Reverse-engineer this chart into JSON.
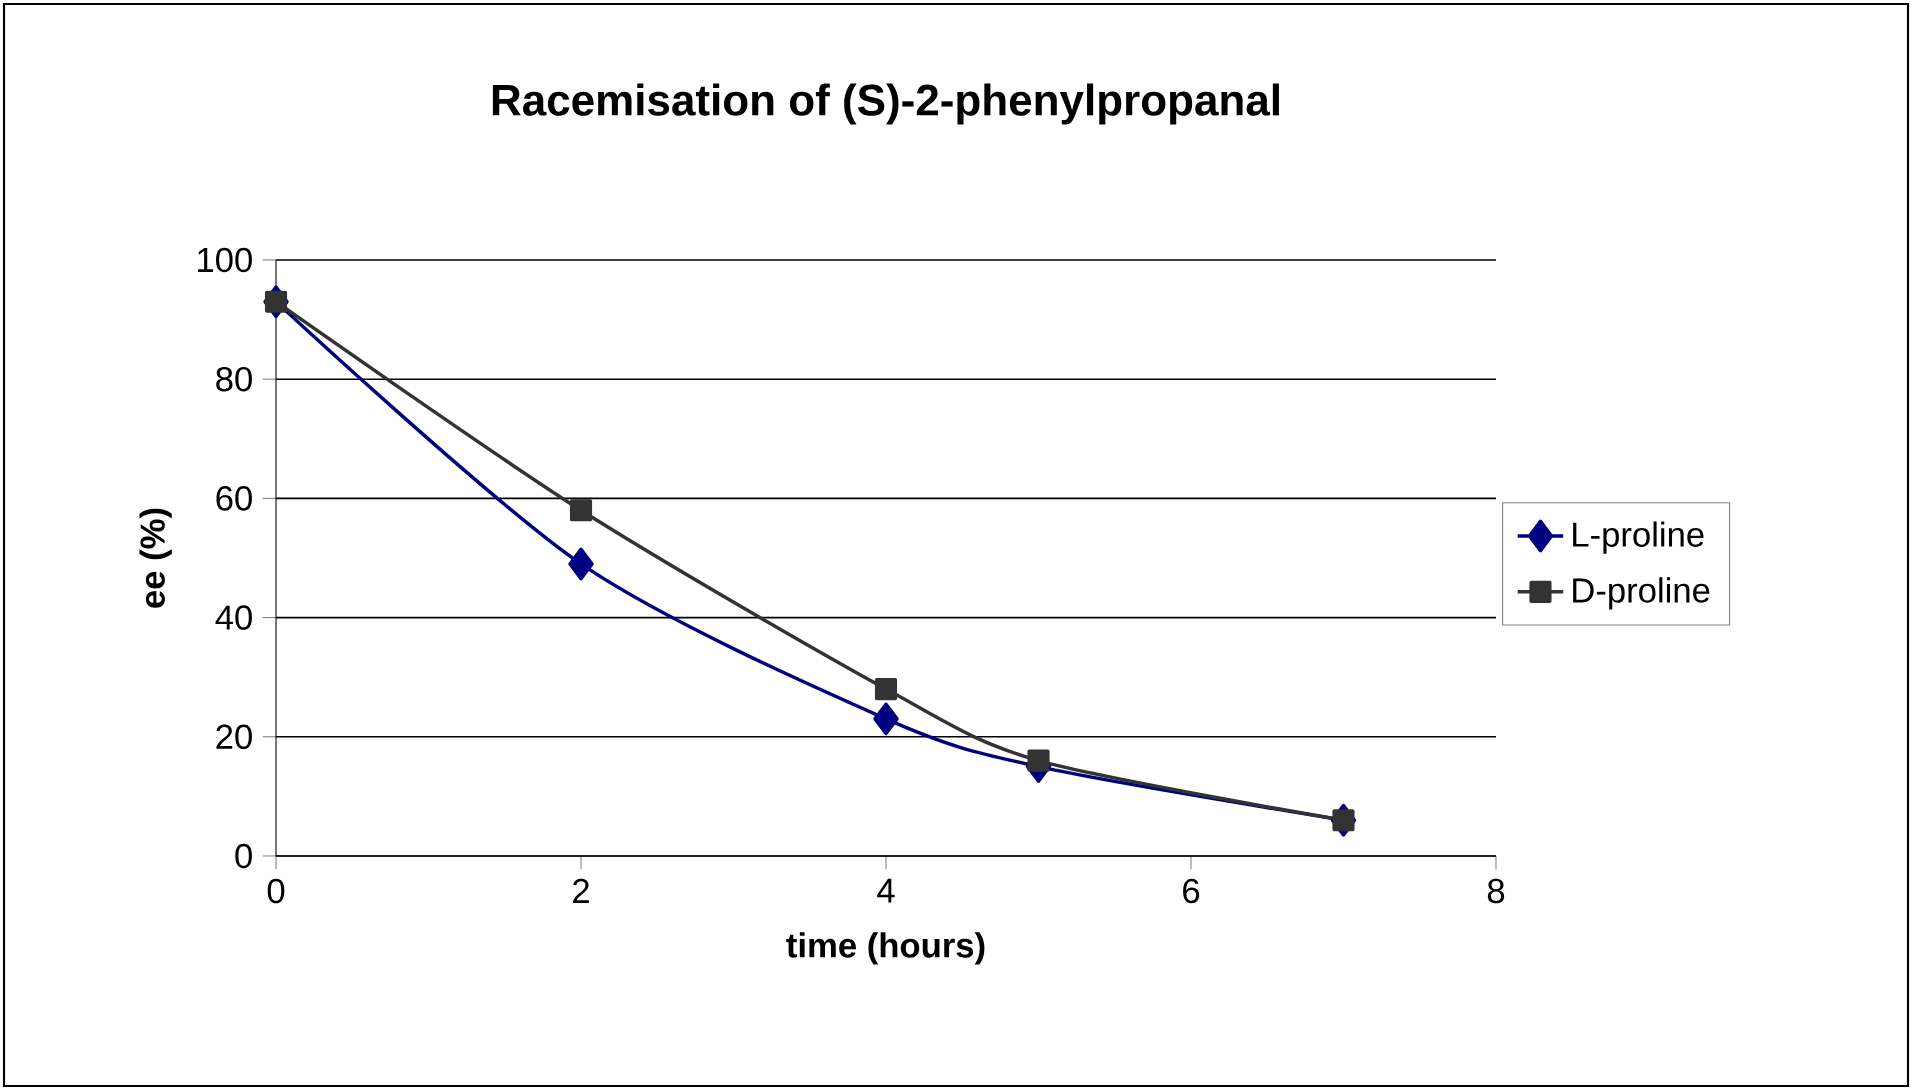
{
  "chart_data": {
    "type": "line",
    "title": "Racemisation of (S)-2-phenylpropanal",
    "xlabel": "time (hours)",
    "ylabel": "ee (%)",
    "x": [
      0,
      2,
      4,
      5,
      7
    ],
    "series": [
      {
        "name": "L-proline",
        "color": "#000080",
        "marker": "diamond",
        "values": [
          93,
          49,
          23,
          15,
          6
        ]
      },
      {
        "name": "D-proline",
        "color": "#333333",
        "marker": "square",
        "values": [
          93,
          58,
          28,
          16,
          6
        ]
      }
    ],
    "xlim": [
      0,
      8
    ],
    "xticks": [
      0,
      2,
      4,
      6,
      8
    ],
    "ylim": [
      0,
      100
    ],
    "yticks": [
      0,
      20,
      40,
      60,
      80,
      100
    ],
    "grid": "y",
    "legend": "right",
    "line_style": "solid"
  }
}
